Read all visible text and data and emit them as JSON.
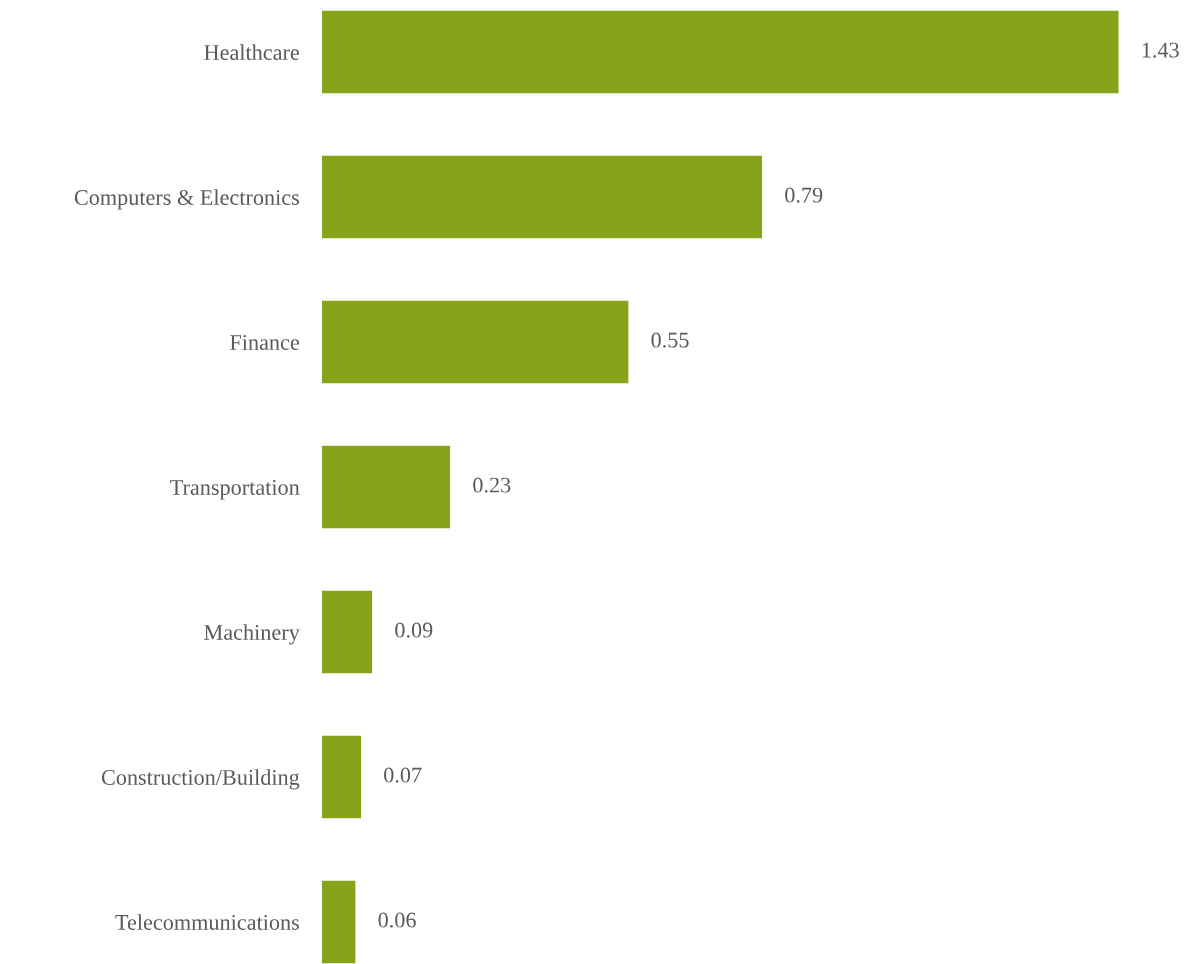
{
  "chart_data": {
    "type": "bar",
    "orientation": "horizontal",
    "categories": [
      "Healthcare",
      "Computers & Electronics",
      "Finance",
      "Transportation",
      "Machinery",
      "Construction/Building",
      "Telecommunications"
    ],
    "values": [
      1.43,
      0.79,
      0.55,
      0.23,
      0.09,
      0.07,
      0.06
    ],
    "color": "#87a31a",
    "data_labels": true,
    "grid": false,
    "legend": false
  }
}
